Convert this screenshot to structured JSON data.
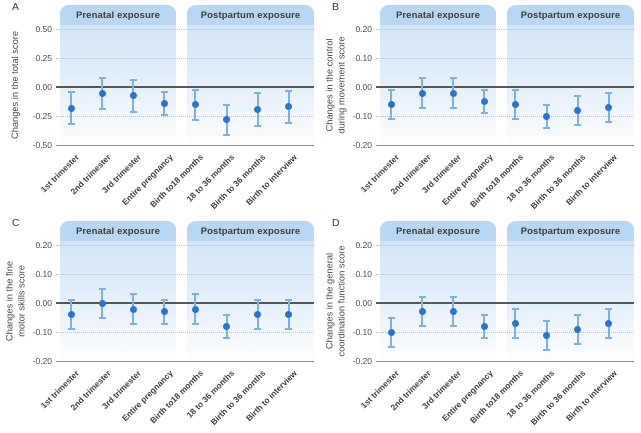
{
  "figure": {
    "background": "#ffffff"
  },
  "colors": {
    "marker": "#2e74c5",
    "error_bar": "#7fb0e0",
    "band_header_bg": "#b9d6f2",
    "band_fill_top": "#d2e5f8",
    "band_fill_bottom": "#fdfeff",
    "zero_line": "#565656",
    "axis_line": "#8a8a8a",
    "gridline": "#c3c3c3",
    "text": "#4a4a4a"
  },
  "categories": [
    "1st trimester",
    "2nd trimester",
    "3rd trimester",
    "Entire pregnancy",
    "Birth to18 months",
    "18 to 36 months",
    "Birth to 36 months",
    "Birth to interview"
  ],
  "chart_data": [
    {
      "type": "scatter",
      "panel_label": "A",
      "ylabel_lines": [
        "Changes in the total score"
      ],
      "groups": [
        {
          "label": "Prenatal exposure",
          "category_range": [
            0,
            3
          ]
        },
        {
          "label": "Postpartum exposure",
          "category_range": [
            4,
            7
          ]
        }
      ],
      "ytick_labels": [
        "0.50",
        "0.25",
        "0.00",
        "-0.25",
        "-0.50"
      ],
      "ytick_values": [
        0.5,
        0.25,
        0,
        -0.25,
        -0.5
      ],
      "ylim": [
        -0.5,
        0.5
      ],
      "grid": "dotted horizontal at ticks, solid line at 0",
      "series": [
        {
          "name": "change estimate with error bars",
          "values": [
            -0.18,
            -0.05,
            -0.07,
            -0.14,
            -0.15,
            -0.28,
            -0.19,
            -0.17
          ],
          "lower": [
            -0.32,
            -0.19,
            -0.21,
            -0.24,
            -0.28,
            -0.41,
            -0.33,
            -0.31
          ],
          "upper": [
            -0.04,
            0.08,
            0.06,
            -0.04,
            -0.02,
            -0.15,
            -0.05,
            -0.03
          ]
        }
      ]
    },
    {
      "type": "scatter",
      "panel_label": "B",
      "ylabel_lines": [
        "Changes in the control",
        "during movement score"
      ],
      "groups": [
        {
          "label": "Prenatal exposure",
          "category_range": [
            0,
            3
          ]
        },
        {
          "label": "Postpartum exposure",
          "category_range": [
            4,
            7
          ]
        }
      ],
      "ytick_labels": [
        "0.20",
        "0.10",
        "0.00",
        "-0.10",
        "-0.20"
      ],
      "ytick_values": [
        0.2,
        0.1,
        0,
        -0.1,
        -0.2
      ],
      "ylim": [
        -0.2,
        0.2
      ],
      "grid": "dotted horizontal at ticks, solid line at 0",
      "series": [
        {
          "name": "change estimate with error bars",
          "values": [
            -0.06,
            -0.02,
            -0.02,
            -0.05,
            -0.06,
            -0.1,
            -0.08,
            -0.07
          ],
          "lower": [
            -0.11,
            -0.07,
            -0.07,
            -0.09,
            -0.11,
            -0.14,
            -0.13,
            -0.12
          ],
          "upper": [
            -0.01,
            0.03,
            0.03,
            -0.01,
            -0.01,
            -0.06,
            -0.03,
            -0.02
          ]
        }
      ]
    },
    {
      "type": "scatter",
      "panel_label": "C",
      "ylabel_lines": [
        "Changes in the fine",
        "motor skills score"
      ],
      "groups": [
        {
          "label": "Prenatal exposure",
          "category_range": [
            0,
            3
          ]
        },
        {
          "label": "Postpartum exposure",
          "category_range": [
            4,
            7
          ]
        }
      ],
      "ytick_labels": [
        "0.20",
        "0.10",
        "0.00",
        "-0.10",
        "-0.20"
      ],
      "ytick_values": [
        0.2,
        0.1,
        0,
        -0.1,
        -0.2
      ],
      "ylim": [
        -0.2,
        0.2
      ],
      "grid": "dotted horizontal at ticks, solid line at 0",
      "series": [
        {
          "name": "change estimate with error bars",
          "values": [
            -0.04,
            0.0,
            -0.02,
            -0.03,
            -0.02,
            -0.08,
            -0.04,
            -0.04
          ],
          "lower": [
            -0.09,
            -0.05,
            -0.07,
            -0.07,
            -0.07,
            -0.12,
            -0.09,
            -0.09
          ],
          "upper": [
            0.01,
            0.05,
            0.03,
            0.01,
            0.03,
            -0.04,
            0.01,
            0.01
          ]
        }
      ]
    },
    {
      "type": "scatter",
      "panel_label": "D",
      "ylabel_lines": [
        "Changes in the general",
        "coordination function score"
      ],
      "groups": [
        {
          "label": "Prenatal exposure",
          "category_range": [
            0,
            3
          ]
        },
        {
          "label": "Postpartum exposure",
          "category_range": [
            4,
            7
          ]
        }
      ],
      "ytick_labels": [
        "0.20",
        "0.10",
        "0.00",
        "-0.10",
        "-0.20"
      ],
      "ytick_values": [
        0.2,
        0.1,
        0,
        -0.1,
        -0.2
      ],
      "ylim": [
        -0.2,
        0.2
      ],
      "grid": "dotted horizontal at ticks, solid line at 0",
      "series": [
        {
          "name": "change estimate with error bars",
          "values": [
            -0.1,
            -0.03,
            -0.03,
            -0.08,
            -0.07,
            -0.11,
            -0.09,
            -0.07
          ],
          "lower": [
            -0.15,
            -0.08,
            -0.08,
            -0.12,
            -0.12,
            -0.16,
            -0.14,
            -0.12
          ],
          "upper": [
            -0.05,
            0.02,
            0.02,
            -0.04,
            -0.02,
            -0.06,
            -0.04,
            -0.02
          ]
        }
      ]
    }
  ]
}
